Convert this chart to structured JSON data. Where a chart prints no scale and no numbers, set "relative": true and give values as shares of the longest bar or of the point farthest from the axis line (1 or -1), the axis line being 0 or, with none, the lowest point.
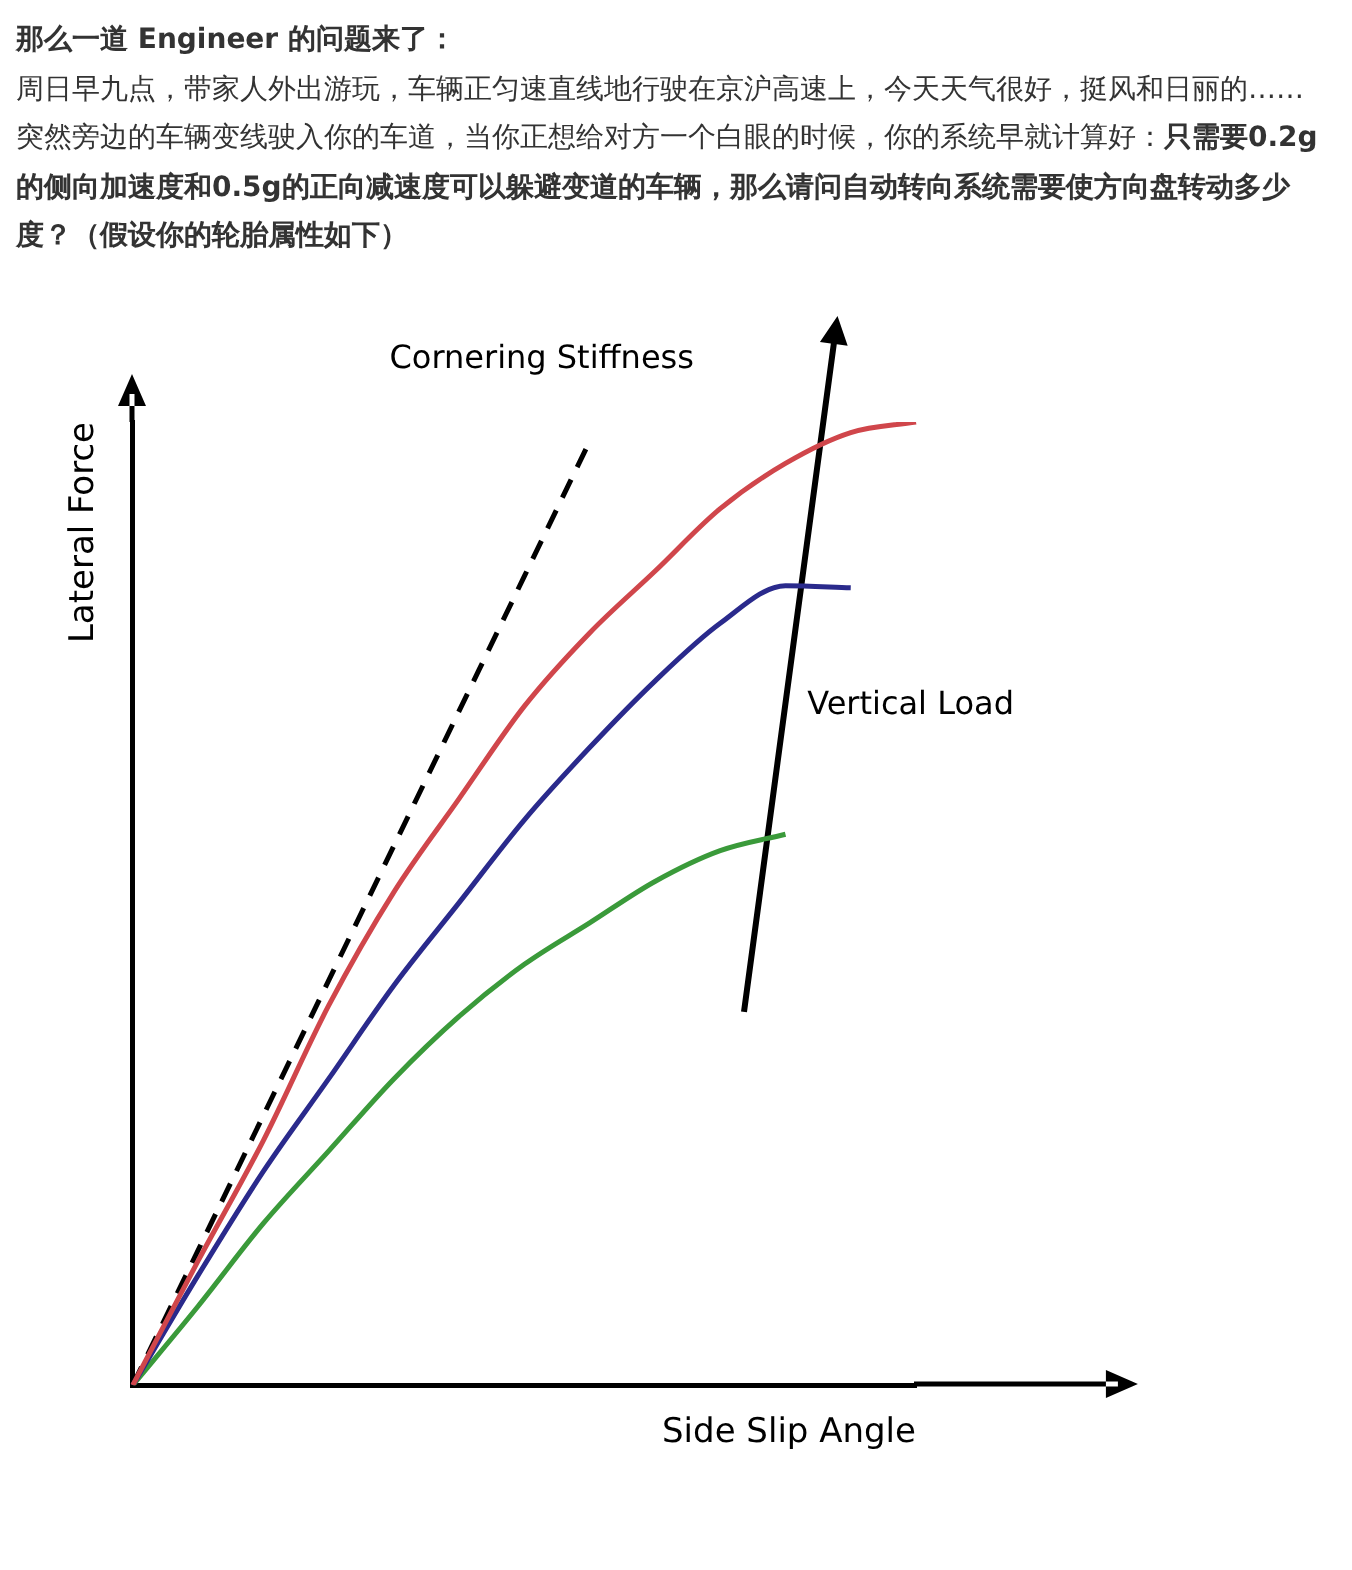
{
  "chart_data": {
    "type": "line",
    "title": "那么一道 Engineer 的问题来了：",
    "annotations": [
      "周日早九点，带家人外出游玩，车辆正匀速直线地行驶在京沪高速上，今天天气很好，挺风和日丽的……",
      "突然旁边的车辆变线驶入你的车道，当你正想给对方一个白眼的时候，你的系统早就计算好：",
      "只需要0.2g的侧向加速度和0.5g的正向减速度可以躲避变道的车辆，那么请问自动转向系统需要使方向盘转动多少度？（假设你的轮胎属性如下）",
      "Cornering Stiffness",
      "Vertical Load"
    ],
    "xlabel": "Side Slip Angle",
    "ylabel": "Lateral Force",
    "relative": true,
    "categories": [
      null,
      null,
      null,
      null,
      null,
      null,
      null,
      null,
      null,
      null,
      null,
      null,
      null
    ],
    "series": [
      {
        "color": "#d0464b",
        "values": [
          0,
          0.129,
          0.254,
          0.394,
          0.512,
          0.609,
          0.705,
          0.781,
          0.845,
          0.91,
          0.957,
          0.989,
          1
        ]
      },
      {
        "color": "#2a2a8c",
        "values": [
          0,
          0.114,
          0.222,
          0.318,
          0.415,
          0.501,
          0.587,
          0.662,
          0.731,
          0.791,
          0.83,
          0.828,
          null
        ]
      },
      {
        "color": "#3a9a3a",
        "values": [
          0,
          0.082,
          0.168,
          0.243,
          0.318,
          0.383,
          0.437,
          0.48,
          0.523,
          0.555,
          0.572,
          null,
          null
        ]
      },
      {
        "color": "#000000",
        "line_style": "dashed",
        "values": [
          0,
          0.14,
          0.28,
          0.42,
          0.56,
          0.7,
          0.84,
          0.98,
          null,
          null,
          null,
          null,
          null
        ]
      }
    ]
  }
}
